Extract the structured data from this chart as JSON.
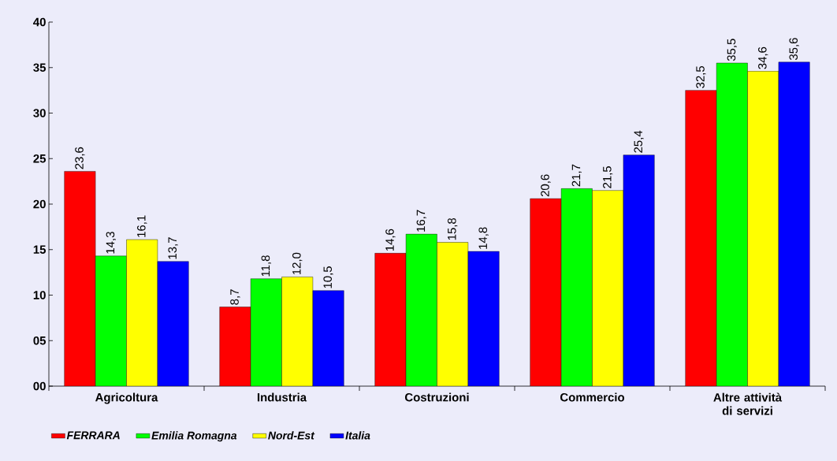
{
  "chart_data": {
    "type": "bar",
    "categories": [
      "Agricoltura",
      "Industria",
      "Costruzioni",
      "Commercio",
      "Altre attività di servizi"
    ],
    "series": [
      {
        "name": "FERRARA",
        "color": "#ff0000",
        "values": [
          23.6,
          8.7,
          14.6,
          20.6,
          32.5
        ],
        "value_labels": [
          "23,6",
          "8,7",
          "14,6",
          "20,6",
          "32,5"
        ]
      },
      {
        "name": "Emilia Romagna",
        "color": "#00ff00",
        "values": [
          14.3,
          11.8,
          16.7,
          21.7,
          35.5
        ],
        "value_labels": [
          "14,3",
          "11,8",
          "16,7",
          "21,7",
          "35,5"
        ]
      },
      {
        "name": "Nord-Est",
        "color": "#ffff00",
        "values": [
          16.1,
          12.0,
          15.8,
          21.5,
          34.6
        ],
        "value_labels": [
          "16,1",
          "12,0",
          "15,8",
          "21,5",
          "34,6"
        ]
      },
      {
        "name": "Italia",
        "color": "#0000ff",
        "values": [
          13.7,
          10.5,
          14.8,
          25.4,
          35.6
        ],
        "value_labels": [
          "13,7",
          "10,5",
          "14,8",
          "25,4",
          "35,6"
        ]
      }
    ],
    "ylim": [
      0,
      40
    ],
    "yticks": [
      {
        "value": 0,
        "label": "00"
      },
      {
        "value": 5,
        "label": "05"
      },
      10,
      15,
      20,
      25,
      30,
      35,
      40
    ],
    "legend": "bottom"
  }
}
